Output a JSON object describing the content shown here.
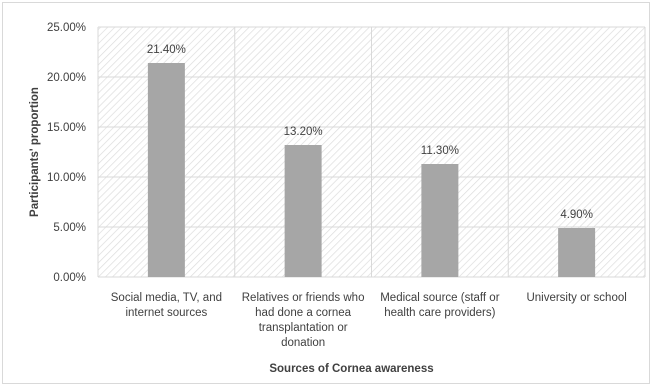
{
  "chart_data": {
    "type": "bar",
    "categories": [
      [
        "Social media, TV, and",
        "internet sources"
      ],
      [
        "Relatives or friends who",
        "had done a cornea",
        "transplantation or",
        "donation"
      ],
      [
        "Medical source (staff or",
        "health care providers)"
      ],
      [
        "University or school"
      ]
    ],
    "values": [
      21.4,
      13.2,
      11.3,
      4.9
    ],
    "data_labels": [
      "21.40%",
      "13.20%",
      "11.30%",
      "4.90%"
    ],
    "xlabel": "Sources of Cornea awareness",
    "ylabel": "Participants' proportion",
    "ylim": [
      0,
      25
    ],
    "yticks": [
      0,
      5,
      10,
      15,
      20,
      25
    ],
    "ytick_labels": [
      "0.00%",
      "5.00%",
      "10.00%",
      "15.00%",
      "20.00%",
      "25.00%"
    ],
    "grid": true,
    "plot_background": "diagonal hatch",
    "colors": {
      "bar": "#a6a6a6",
      "grid": "#d9d9d9",
      "hatch": "#dcdcdc",
      "text": "#404040"
    }
  }
}
